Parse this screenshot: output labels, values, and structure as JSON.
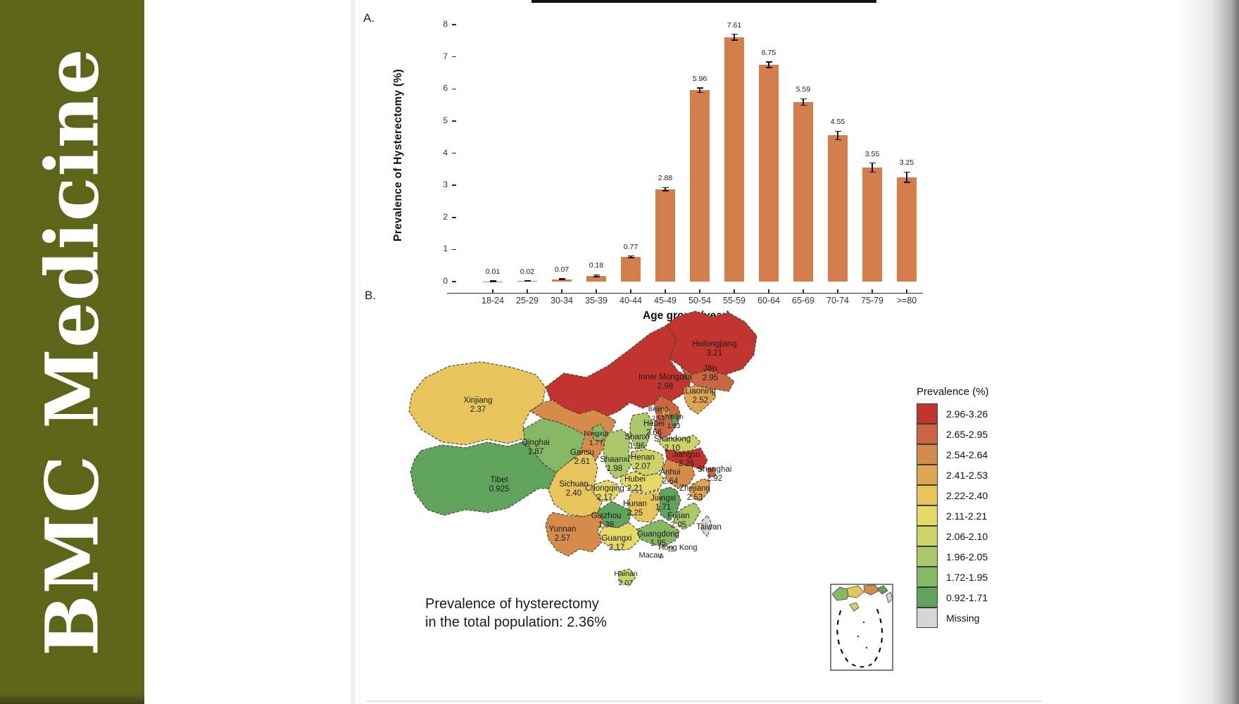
{
  "banner": {
    "title": "BMC Medicine",
    "color": "#5d6519"
  },
  "panels": {
    "a_label": "A.",
    "b_label": "B."
  },
  "chart_data": [
    {
      "id": "hysterectomy_prevalence_by_age",
      "type": "bar",
      "title": "",
      "xlabel": "Age group (year)",
      "ylabel": "Prevalence of Hysterectomy (%)",
      "ylim": [
        0,
        8
      ],
      "yticks": [
        0,
        1,
        2,
        3,
        4,
        5,
        6,
        7,
        8
      ],
      "grid": false,
      "bar_color": "#d47e4e",
      "error_bar_color": "#161616",
      "categories": [
        "18-24",
        "25-29",
        "30-34",
        "35-39",
        "40-44",
        "45-49",
        "50-54",
        "55-59",
        "60-64",
        "65-69",
        "70-74",
        "75-79",
        ">=80"
      ],
      "values": [
        0.01,
        0.02,
        0.07,
        0.18,
        0.77,
        2.88,
        5.96,
        7.61,
        6.75,
        5.59,
        4.55,
        3.55,
        3.25
      ],
      "value_labels": [
        "0.01",
        "0.02",
        "0.07",
        "0.18",
        "0.77",
        "2.88",
        "5.96",
        "7.61",
        "6.75",
        "5.59",
        "4.55",
        "3.55",
        "3.25"
      ],
      "errors": [
        0.01,
        0.01,
        0.02,
        0.03,
        0.03,
        0.05,
        0.07,
        0.09,
        0.09,
        0.1,
        0.13,
        0.14,
        0.16
      ]
    },
    {
      "id": "hysterectomy_prevalence_by_province",
      "type": "choropleth",
      "region": "China",
      "legend_title": "Prevalence (%)",
      "legend_position": "right",
      "annotation": [
        "Prevalence of hysterectomy",
        "in the total population: 2.36%"
      ],
      "total_prevalence_percent": 2.36,
      "legend": [
        {
          "range": "2.96-3.26",
          "color": "#c2342f"
        },
        {
          "range": "2.65-2.95",
          "color": "#ca6742"
        },
        {
          "range": "2.54-2.64",
          "color": "#d58c4b"
        },
        {
          "range": "2.41-2.53",
          "color": "#e0a551"
        },
        {
          "range": "2.22-2.40",
          "color": "#e7c55c"
        },
        {
          "range": "2.11-2.21",
          "color": "#e5d968"
        },
        {
          "range": "2.06-2.10",
          "color": "#ccd468"
        },
        {
          "range": "1.96-2.05",
          "color": "#a9c96a"
        },
        {
          "range": "1.72-1.95",
          "color": "#85b765"
        },
        {
          "range": "0.92-1.71",
          "color": "#5fa35c"
        },
        {
          "range": "Missing",
          "color": "#d6d6d6"
        }
      ],
      "provinces": [
        {
          "name": "Heilongjiang",
          "value": "3.21",
          "color": "#c2342f"
        },
        {
          "name": "Inner Mongolia",
          "value": "2.98",
          "color": "#c2342f"
        },
        {
          "name": "Jilin",
          "value": "2.95",
          "color": "#ca6742"
        },
        {
          "name": "Liaoning",
          "value": "2.52",
          "color": "#e0a551"
        },
        {
          "name": "Beijing",
          "value": "2.53",
          "color": "#e0a551"
        },
        {
          "name": "Tianjin",
          "value": "1.53",
          "color": "#5fa35c"
        },
        {
          "name": "Hebei",
          "value": "2.66",
          "color": "#ca6742"
        },
        {
          "name": "Xinjiang",
          "value": "2.37",
          "color": "#e7c55c"
        },
        {
          "name": "Ningxia",
          "value": "1.77",
          "color": "#85b765"
        },
        {
          "name": "Shanxi",
          "value": "1.96",
          "color": "#a9c96a"
        },
        {
          "name": "Shandong",
          "value": "2.10",
          "color": "#ccd468"
        },
        {
          "name": "Qinghai",
          "value": "1.87",
          "color": "#85b765"
        },
        {
          "name": "Gansu",
          "value": "2.61",
          "color": "#d58c4b"
        },
        {
          "name": "Shaanxi",
          "value": "1.98",
          "color": "#a9c96a"
        },
        {
          "name": "Henan",
          "value": "2.07",
          "color": "#ccd468"
        },
        {
          "name": "Jiangsu",
          "value": "3.26",
          "color": "#c2342f"
        },
        {
          "name": "Shanghai",
          "value": "2.92",
          "color": "#ca6742"
        },
        {
          "name": "Anhui",
          "value": "2.64",
          "color": "#d58c4b"
        },
        {
          "name": "Tibet",
          "value": "0.925",
          "color": "#5fa35c"
        },
        {
          "name": "Sichuan",
          "value": "2.40",
          "color": "#e7c55c"
        },
        {
          "name": "Hubei",
          "value": "2.21",
          "color": "#e5d968"
        },
        {
          "name": "Chongqing",
          "value": "2.17",
          "color": "#e5d968"
        },
        {
          "name": "Zhejiang",
          "value": "2.53",
          "color": "#e0a551"
        },
        {
          "name": "Jiangxi",
          "value": "1.71",
          "color": "#5fa35c"
        },
        {
          "name": "Hunan",
          "value": "2.25",
          "color": "#e7c55c"
        },
        {
          "name": "Guizhou",
          "value": "1.38",
          "color": "#5fa35c"
        },
        {
          "name": "Fujian",
          "value": "2.05",
          "color": "#a9c96a"
        },
        {
          "name": "Yunnan",
          "value": "2.57",
          "color": "#d58c4b"
        },
        {
          "name": "Guangdong",
          "value": "1.95",
          "color": "#85b765"
        },
        {
          "name": "Guangxi",
          "value": "2.17",
          "color": "#e5d968"
        },
        {
          "name": "Hainan",
          "value": "2.07",
          "color": "#ccd468"
        },
        {
          "name": "Taiwan",
          "value": "",
          "color": "#d6d6d6"
        },
        {
          "name": "Hong Kong",
          "value": "",
          "color": "#d6d6d6"
        },
        {
          "name": "Macau",
          "value": "",
          "color": "#d6d6d6"
        }
      ]
    }
  ]
}
